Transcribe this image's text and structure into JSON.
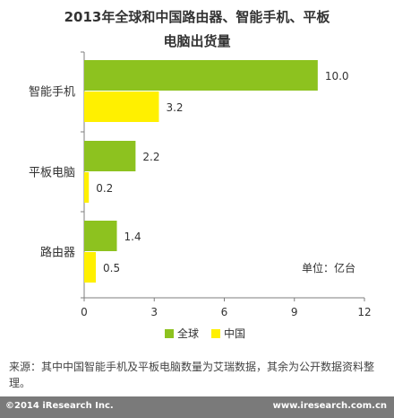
{
  "chart_data": {
    "type": "bar",
    "orientation": "horizontal",
    "title": "2013年全球和中国路由器、智能手机、平板\n电脑出货量",
    "categories": [
      "智能手机",
      "平板电脑",
      "路由器"
    ],
    "series": [
      {
        "name": "全球",
        "color": "#8dc21f",
        "values": [
          10.0,
          2.2,
          1.4
        ]
      },
      {
        "name": "中国",
        "color": "#fff000",
        "values": [
          3.2,
          0.2,
          0.5
        ]
      }
    ],
    "value_labels": [
      [
        "10.0",
        "2.2",
        "1.4"
      ],
      [
        "3.2",
        "0.2",
        "0.5"
      ]
    ],
    "xlim": [
      0,
      12
    ],
    "xticks": [
      "0",
      "3",
      "6",
      "9",
      "12"
    ],
    "unit_note": "单位：亿台",
    "grid": false,
    "legend_position": "bottom"
  },
  "source_note": "来源：其中中国智能手机及平板电脑数量为艾瑞数据，其余为公开数据资料整理。",
  "footer": {
    "left": "©2014 iResearch Inc.",
    "right": "www.iresearch.com.cn"
  }
}
